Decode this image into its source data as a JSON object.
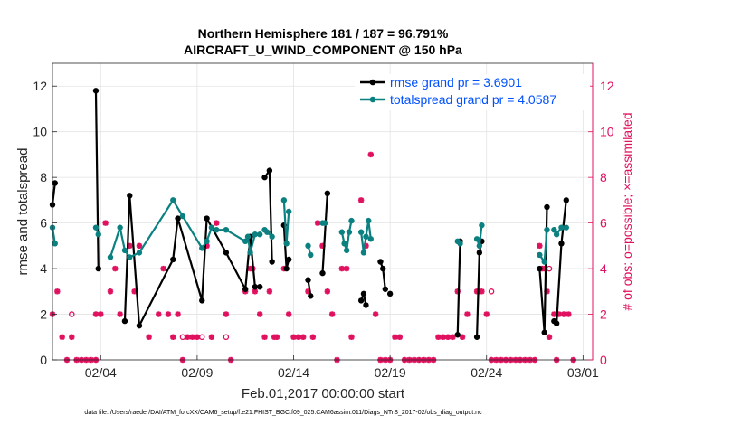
{
  "chart_data": {
    "type": "line",
    "title": "Northern Hemisphere 181 / 187 = 96.791%",
    "subtitle": "AIRCRAFT_U_WIND_COMPONENT @ 150 hPa",
    "xlabel": "Feb.01,2017 00:00:00 start",
    "ylabel": "rmse and totalspread",
    "ylabel_right": "# of obs: o=possible; ×=assimilated",
    "footer": "data file: /Users/raeder/DAI/ATM_forcXX/CAM6_setup/f.e21.FHIST_BGC.f09_025.CAM6assim.011/Diags_NTrS_2017-02/obs_diag_output.nc",
    "xlim": [
      1,
      29
    ],
    "ylim": [
      0,
      13
    ],
    "ylim_right": [
      0,
      13
    ],
    "xticks": [
      3.5,
      8.5,
      13.5,
      18.5,
      23.5,
      28.5
    ],
    "xtick_labels": [
      "02/04",
      "02/09",
      "02/14",
      "02/19",
      "02/24",
      "03/01"
    ],
    "yticks": [
      0,
      2,
      4,
      6,
      8,
      10,
      12
    ],
    "ytick_labels": [
      "0",
      "2",
      "4",
      "6",
      "8",
      "10",
      "12"
    ],
    "yticks_right": [
      0,
      2,
      4,
      6,
      8,
      10,
      12
    ],
    "ytick_labels_right": [
      "0",
      "2",
      "4",
      "6",
      "8",
      "10",
      "12"
    ],
    "grid": true,
    "legend_position": "top-right",
    "series": [
      {
        "name": "rmse grand pr = 3.6901",
        "color": "#000000",
        "axis": "left",
        "points": [
          [
            1.0,
            6.8
          ],
          [
            1.13,
            7.75
          ],
          null,
          [
            3.25,
            11.8
          ],
          [
            3.38,
            4.0
          ],
          null,
          [
            4.75,
            1.7
          ],
          [
            5.0,
            7.2
          ],
          [
            5.5,
            1.5
          ],
          [
            7.25,
            4.4
          ],
          [
            7.5,
            6.2
          ],
          [
            8.75,
            2.6
          ],
          [
            9.0,
            6.2
          ],
          [
            10.0,
            4.7
          ],
          [
            11.0,
            3.1
          ],
          [
            11.25,
            5.4
          ],
          [
            11.5,
            3.2
          ],
          [
            11.75,
            3.2
          ],
          null,
          [
            12.0,
            8.0
          ],
          [
            12.25,
            8.3
          ],
          [
            12.38,
            4.3
          ],
          null,
          [
            13.0,
            5.9
          ],
          [
            13.13,
            4.0
          ],
          [
            13.25,
            4.4
          ],
          null,
          [
            14.25,
            3.5
          ],
          [
            14.38,
            2.8
          ],
          null,
          [
            15.0,
            3.8
          ],
          [
            15.25,
            7.3
          ],
          null,
          [
            17.0,
            2.6
          ],
          [
            17.13,
            2.9
          ],
          [
            17.25,
            2.4
          ],
          null,
          [
            18.0,
            4.3
          ],
          [
            18.13,
            4.0
          ],
          [
            18.25,
            3.1
          ],
          null,
          [
            18.5,
            2.9
          ],
          null,
          [
            22.0,
            1.1
          ],
          [
            22.13,
            5.2
          ],
          null,
          [
            23.0,
            1.0
          ],
          [
            23.13,
            4.7
          ],
          [
            23.25,
            5.2
          ],
          null,
          [
            26.25,
            4.0
          ],
          [
            26.5,
            1.2
          ],
          [
            26.63,
            6.7
          ],
          null,
          [
            27.0,
            1.7
          ],
          [
            27.13,
            1.6
          ],
          [
            27.38,
            5.1
          ],
          [
            27.63,
            7.0
          ]
        ]
      },
      {
        "name": "totalspread grand pr = 4.0587",
        "color": "#0b8080",
        "axis": "left",
        "points": [
          [
            1.0,
            5.8
          ],
          [
            1.13,
            5.1
          ],
          null,
          [
            3.25,
            5.8
          ],
          [
            3.38,
            5.5
          ],
          null,
          [
            4.0,
            4.5
          ],
          [
            4.5,
            5.8
          ],
          [
            4.75,
            4.8
          ],
          [
            5.0,
            4.5
          ],
          [
            5.5,
            4.7
          ],
          [
            7.25,
            7.0
          ],
          [
            7.75,
            6.3
          ],
          [
            8.75,
            4.9
          ],
          [
            9.0,
            5.2
          ],
          [
            9.25,
            5.8
          ],
          [
            9.5,
            5.7
          ],
          [
            10.0,
            5.7
          ],
          [
            11.0,
            5.2
          ],
          [
            11.13,
            5.4
          ],
          [
            11.25,
            4.7
          ],
          [
            11.5,
            5.5
          ],
          [
            11.75,
            5.5
          ],
          null,
          [
            12.0,
            5.7
          ],
          [
            12.13,
            5.6
          ],
          [
            12.38,
            5.4
          ],
          null,
          [
            13.0,
            7.0
          ],
          [
            13.13,
            5.1
          ],
          [
            13.25,
            6.5
          ],
          null,
          [
            14.25,
            5.0
          ],
          [
            14.38,
            4.6
          ],
          null,
          [
            15.0,
            6.0
          ],
          [
            15.13,
            6.0
          ],
          null,
          [
            16.0,
            5.6
          ],
          [
            16.13,
            5.1
          ],
          [
            16.25,
            4.8
          ],
          [
            16.38,
            5.6
          ],
          [
            16.5,
            6.1
          ],
          null,
          [
            17.0,
            5.6
          ],
          [
            17.13,
            4.7
          ],
          [
            17.25,
            5.4
          ],
          [
            17.38,
            6.1
          ],
          [
            17.5,
            5.3
          ],
          null,
          [
            22.0,
            5.2
          ],
          [
            22.13,
            5.1
          ],
          null,
          [
            23.0,
            5.3
          ],
          [
            23.13,
            5.0
          ],
          [
            23.25,
            5.9
          ],
          null,
          [
            26.25,
            4.6
          ],
          [
            26.5,
            4.3
          ],
          [
            26.63,
            5.7
          ],
          null,
          [
            27.0,
            5.7
          ],
          [
            27.13,
            5.5
          ],
          [
            27.38,
            5.8
          ],
          [
            27.63,
            5.8
          ]
        ]
      }
    ],
    "obs_possible": {
      "name": "# of obs possible",
      "color": "#e0115f",
      "axis": "right",
      "marker": "o",
      "points": [
        [
          2.0,
          2.0
        ],
        [
          7.75,
          1.0
        ],
        [
          8.75,
          1.0
        ],
        [
          10.0,
          1.0
        ],
        [
          23.75,
          3.0
        ],
        [
          26.75,
          4.0
        ]
      ]
    },
    "obs_assimilated": {
      "name": "# of obs assimilated",
      "color": "#e0115f",
      "axis": "right",
      "marker": "x",
      "points": [
        [
          1.0,
          2.0
        ],
        [
          1.25,
          3.0
        ],
        [
          1.5,
          1.0
        ],
        [
          1.75,
          0.0
        ],
        [
          2.0,
          1.0
        ],
        [
          2.25,
          0.0
        ],
        [
          2.5,
          0.0
        ],
        [
          2.75,
          0.0
        ],
        [
          3.0,
          0.0
        ],
        [
          3.25,
          0.0
        ],
        [
          3.25,
          2.0
        ],
        [
          3.5,
          2.0
        ],
        [
          3.75,
          6.0
        ],
        [
          4.0,
          3.0
        ],
        [
          4.25,
          4.0
        ],
        [
          4.5,
          2.0
        ],
        [
          5.0,
          5.0
        ],
        [
          5.25,
          3.0
        ],
        [
          5.5,
          5.0
        ],
        [
          6.0,
          1.0
        ],
        [
          6.5,
          2.0
        ],
        [
          6.75,
          4.0
        ],
        [
          7.0,
          2.0
        ],
        [
          7.25,
          1.0
        ],
        [
          7.5,
          2.0
        ],
        [
          7.75,
          0.0
        ],
        [
          8.0,
          1.0
        ],
        [
          8.25,
          1.0
        ],
        [
          8.5,
          1.0
        ],
        [
          9.0,
          5.0
        ],
        [
          9.25,
          1.0
        ],
        [
          9.5,
          6.0
        ],
        [
          10.0,
          2.0
        ],
        [
          10.25,
          0.0
        ],
        [
          11.0,
          3.0
        ],
        [
          11.25,
          4.0
        ],
        [
          11.38,
          4.0
        ],
        [
          11.5,
          3.0
        ],
        [
          11.75,
          2.0
        ],
        [
          12.0,
          1.0
        ],
        [
          12.25,
          3.0
        ],
        [
          12.5,
          1.0
        ],
        [
          12.63,
          1.0
        ],
        [
          13.0,
          4.0
        ],
        [
          13.25,
          2.0
        ],
        [
          13.5,
          1.0
        ],
        [
          13.75,
          1.0
        ],
        [
          14.0,
          1.0
        ],
        [
          14.25,
          3.0
        ],
        [
          14.5,
          1.0
        ],
        [
          14.75,
          6.0
        ],
        [
          15.0,
          5.0
        ],
        [
          15.25,
          3.0
        ],
        [
          15.5,
          2.0
        ],
        [
          15.75,
          0.0
        ],
        [
          16.0,
          4.0
        ],
        [
          16.25,
          4.0
        ],
        [
          16.5,
          1.0
        ],
        [
          17.0,
          7.0
        ],
        [
          17.25,
          5.0
        ],
        [
          17.5,
          9.0
        ],
        [
          17.75,
          2.0
        ],
        [
          18.0,
          0.0
        ],
        [
          18.25,
          0.0
        ],
        [
          18.5,
          0.0
        ],
        [
          18.75,
          1.0
        ],
        [
          19.0,
          1.0
        ],
        [
          19.25,
          0.0
        ],
        [
          19.5,
          0.0
        ],
        [
          19.75,
          0.0
        ],
        [
          20.0,
          0.0
        ],
        [
          20.25,
          0.0
        ],
        [
          20.5,
          0.0
        ],
        [
          20.75,
          0.0
        ],
        [
          21.0,
          1.0
        ],
        [
          21.25,
          1.0
        ],
        [
          21.5,
          1.0
        ],
        [
          21.75,
          1.0
        ],
        [
          22.0,
          3.0
        ],
        [
          22.25,
          1.0
        ],
        [
          22.5,
          2.0
        ],
        [
          23.0,
          3.0
        ],
        [
          23.13,
          3.0
        ],
        [
          23.25,
          3.0
        ],
        [
          23.5,
          2.0
        ],
        [
          23.75,
          0.0
        ],
        [
          24.0,
          0.0
        ],
        [
          24.25,
          0.0
        ],
        [
          24.5,
          0.0
        ],
        [
          24.75,
          0.0
        ],
        [
          25.0,
          0.0
        ],
        [
          25.25,
          0.0
        ],
        [
          25.5,
          0.0
        ],
        [
          25.75,
          0.0
        ],
        [
          26.0,
          0.0
        ],
        [
          26.25,
          5.0
        ],
        [
          26.38,
          4.0
        ],
        [
          26.5,
          4.0
        ],
        [
          26.63,
          3.0
        ],
        [
          26.75,
          1.0
        ],
        [
          27.0,
          2.0
        ],
        [
          27.13,
          0.0
        ],
        [
          27.25,
          2.0
        ],
        [
          27.5,
          2.0
        ],
        [
          27.75,
          2.0
        ],
        [
          28.0,
          0.0
        ]
      ]
    }
  }
}
